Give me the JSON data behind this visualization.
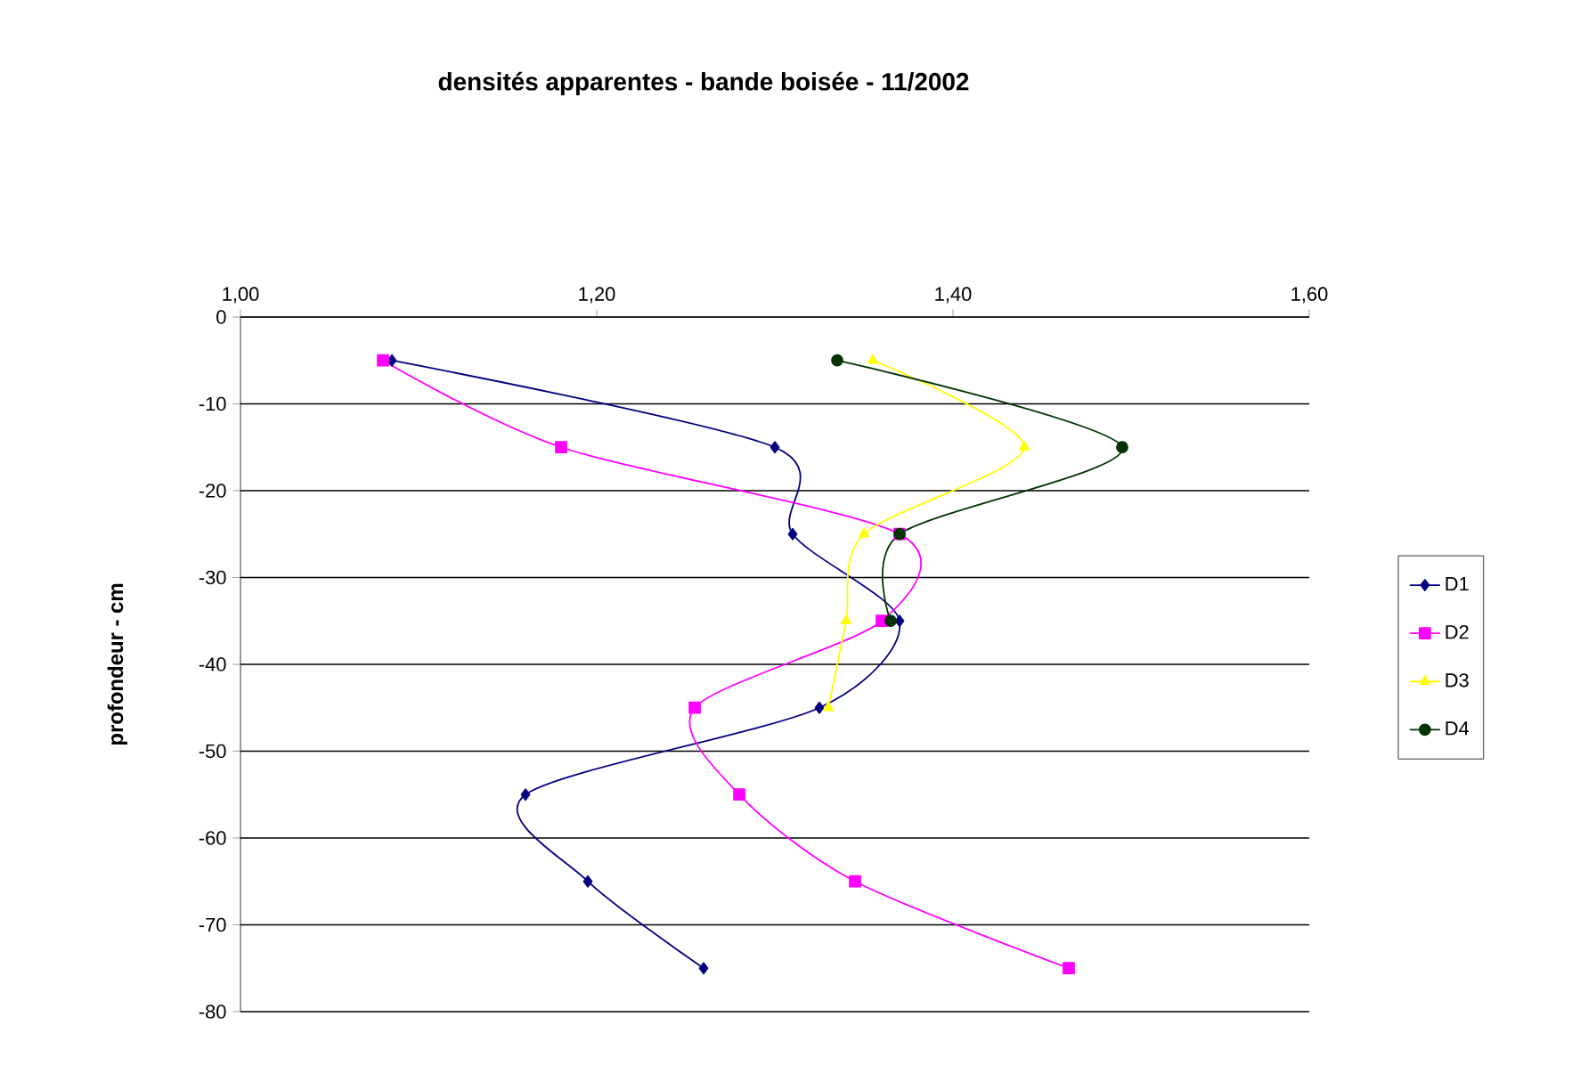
{
  "chart_data": {
    "type": "line",
    "title": "densités apparentes - bande boisée - 11/2002",
    "ylabel": "profondeur - cm",
    "x": [
      -5,
      -15,
      -25,
      -35,
      -45,
      -55,
      -65,
      -75
    ],
    "series": [
      {
        "name": "D1",
        "color": "#000080",
        "marker": "diamond",
        "values": [
          1.085,
          1.3,
          1.31,
          1.37,
          1.325,
          1.16,
          1.195,
          1.26
        ]
      },
      {
        "name": "D2",
        "color": "#ff00ff",
        "marker": "square",
        "values": [
          1.08,
          1.18,
          1.37,
          1.36,
          1.255,
          1.28,
          1.345,
          1.465
        ]
      },
      {
        "name": "D3",
        "color": "#ffff00",
        "marker": "triangle",
        "values": [
          1.355,
          1.44,
          1.35,
          1.34,
          1.33,
          null,
          null,
          null
        ]
      },
      {
        "name": "D4",
        "color": "#003300",
        "marker": "circle",
        "values": [
          1.335,
          1.495,
          1.37,
          1.365,
          null,
          null,
          null,
          null
        ]
      }
    ],
    "orientation": "horizontal",
    "xlim": [
      1.0,
      1.6
    ],
    "xticks": [
      {
        "value": 1.0,
        "label": "1,00"
      },
      {
        "value": 1.2,
        "label": "1,20"
      },
      {
        "value": 1.4,
        "label": "1,40"
      },
      {
        "value": 1.6,
        "label": "1,60"
      }
    ],
    "ylim": [
      -80,
      0
    ],
    "yticks": [
      0,
      -10,
      -20,
      -30,
      -40,
      -50,
      -60,
      -70,
      -80
    ],
    "grid": "y",
    "legend": "right",
    "line_style": "solid"
  }
}
